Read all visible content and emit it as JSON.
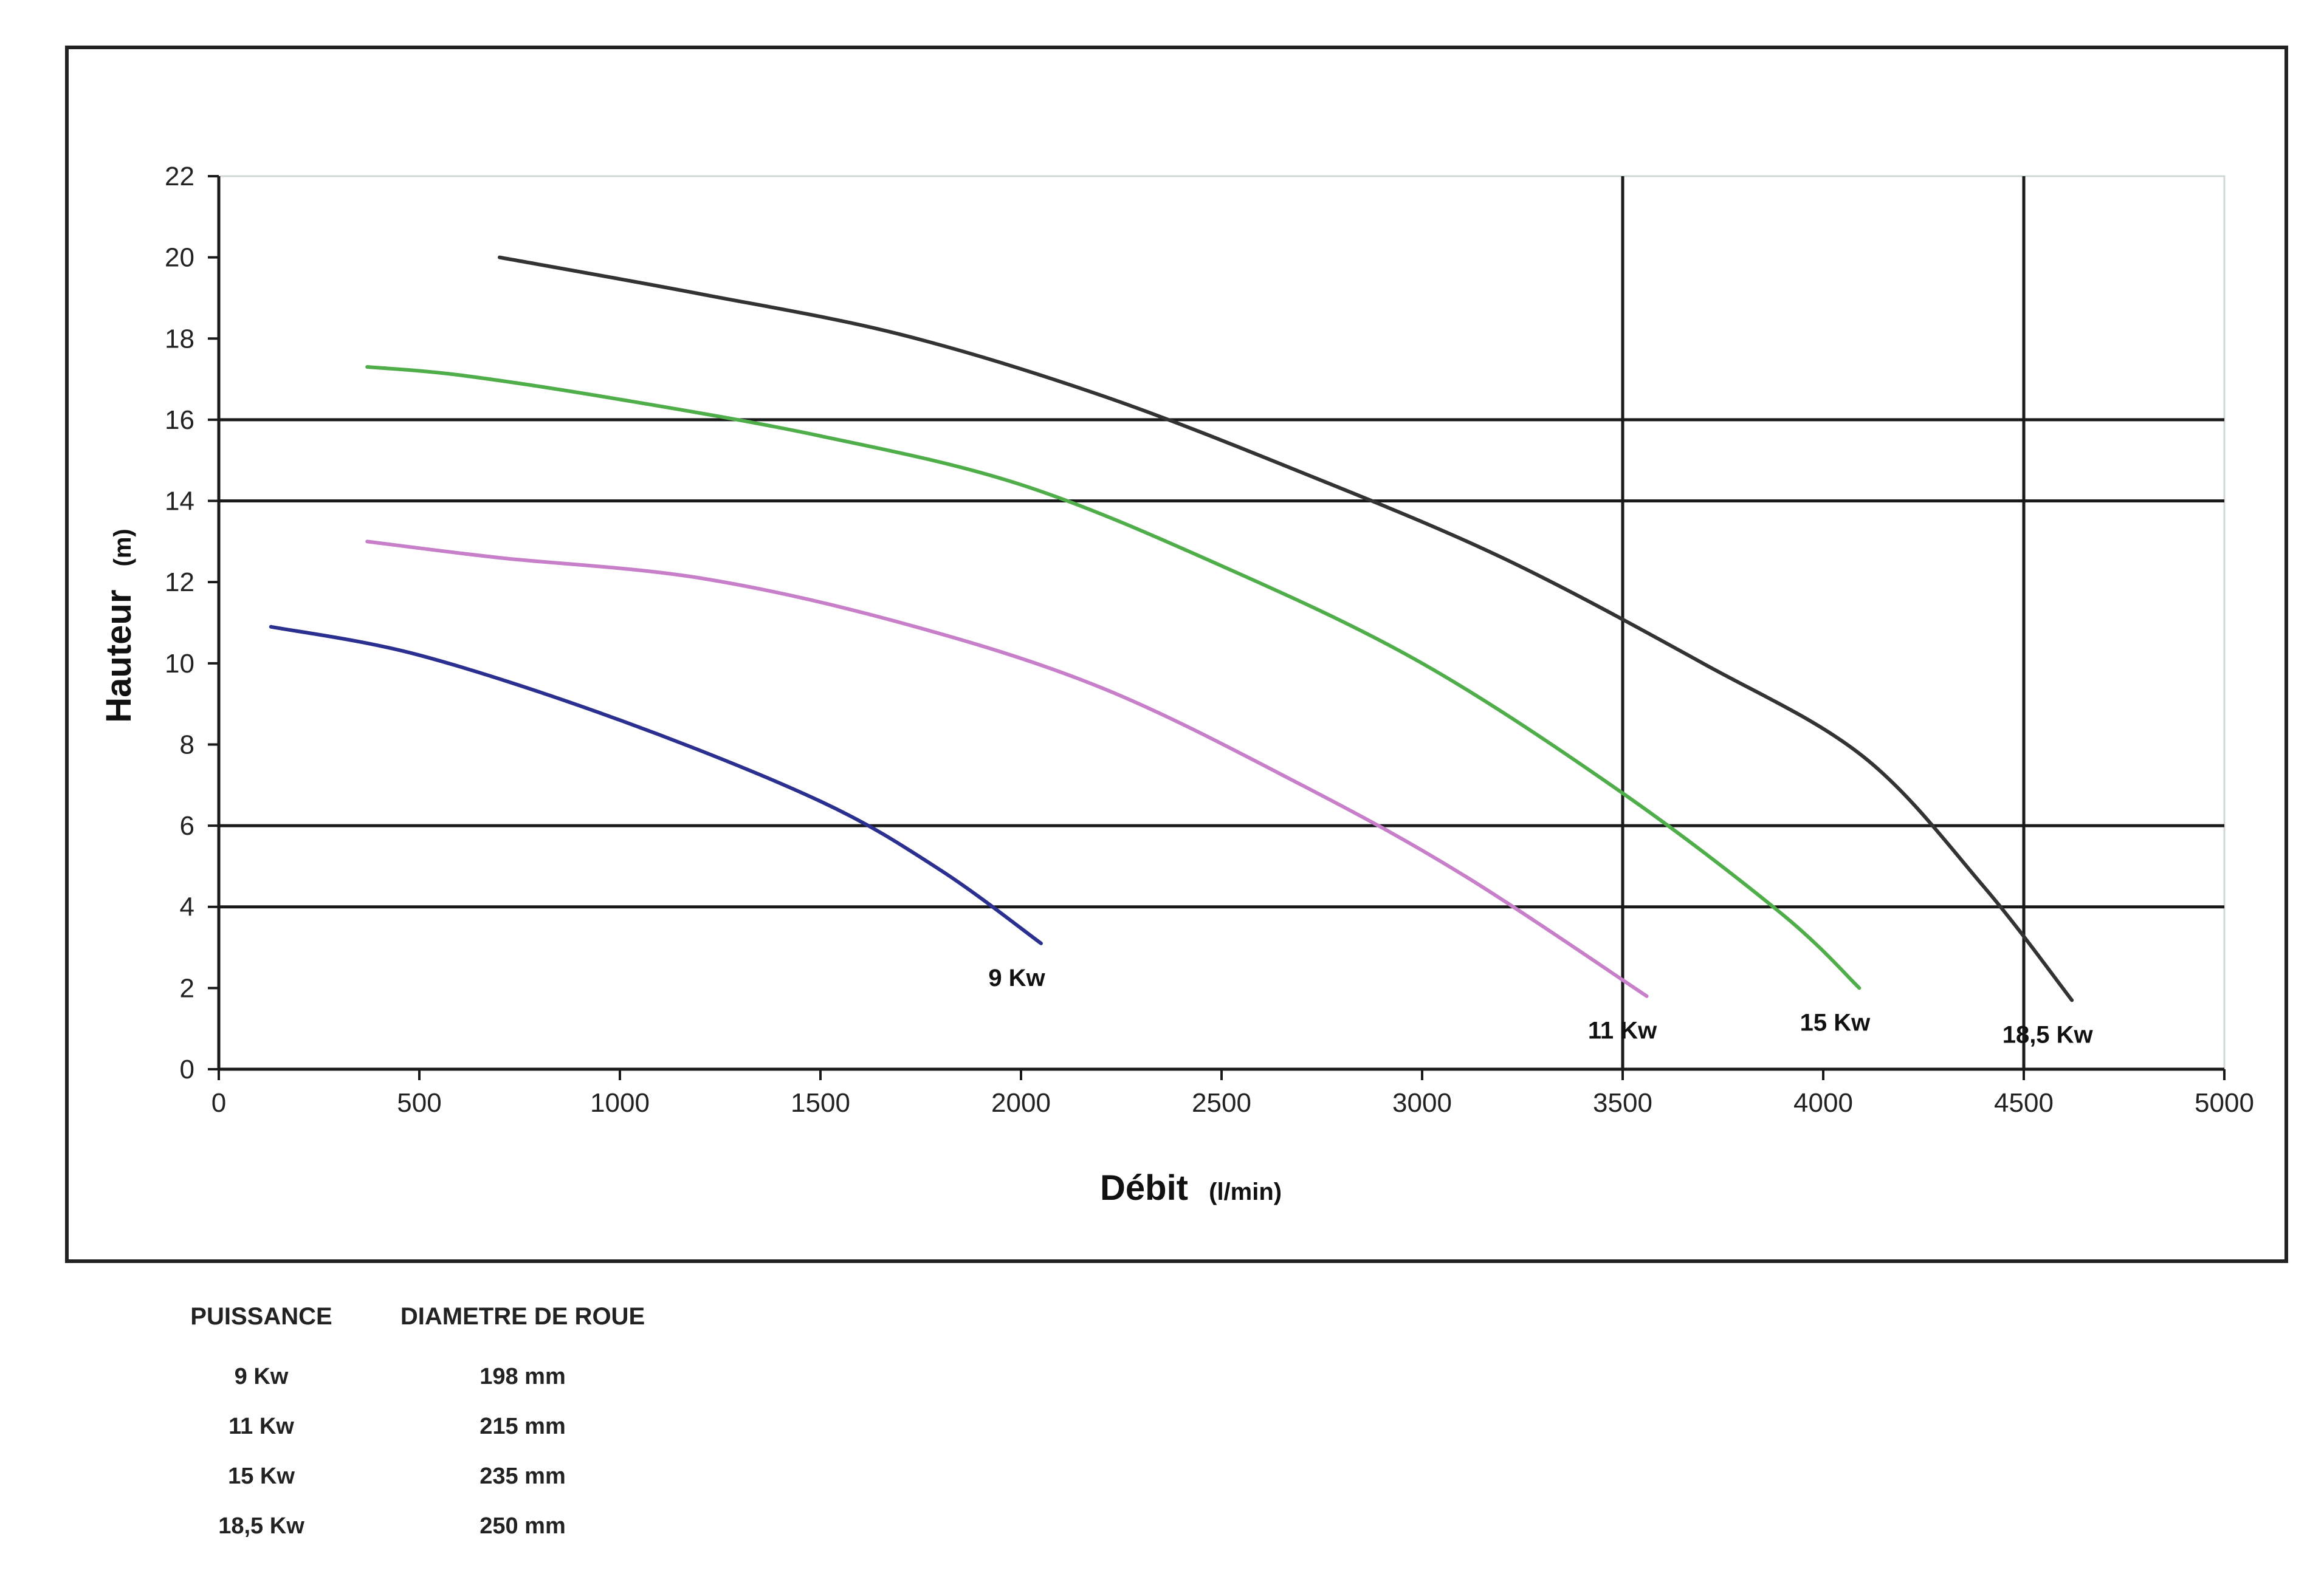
{
  "chart_data": {
    "type": "line",
    "xlabel": "Débit",
    "xlabel_unit": "(l/min)",
    "ylabel": "Hauteur",
    "ylabel_unit": "(m)",
    "xlim": [
      0,
      5000
    ],
    "ylim": [
      0,
      22
    ],
    "x_ticks": [
      "0",
      "500",
      "1000",
      "1500",
      "2000",
      "2500",
      "3000",
      "3500",
      "4000",
      "4500",
      "5000"
    ],
    "y_ticks": [
      "0",
      "2",
      "4",
      "6",
      "8",
      "10",
      "12",
      "14",
      "16",
      "18",
      "20",
      "22"
    ],
    "reference_lines": {
      "horizontal": [
        4,
        6,
        14,
        16
      ],
      "vertical": [
        3500,
        4500
      ]
    },
    "series": [
      {
        "name": "9 Kw",
        "color": "#2b2f8f",
        "x": [
          130,
          500,
          1000,
          1500,
          1800,
          2050
        ],
        "y": [
          10.9,
          10.2,
          8.6,
          6.6,
          4.9,
          3.1
        ]
      },
      {
        "name": "11 Kw",
        "color": "#c77fc9",
        "x": [
          370,
          700,
          1200,
          1700,
          2200,
          2700,
          3100,
          3560
        ],
        "y": [
          13.0,
          12.6,
          12.1,
          11.0,
          9.4,
          7.0,
          4.8,
          1.8
        ]
      },
      {
        "name": "15 Kw",
        "color": "#4fae4a",
        "x": [
          370,
          600,
          1000,
          1500,
          2000,
          2500,
          3000,
          3500,
          3900,
          4090
        ],
        "y": [
          17.3,
          17.1,
          16.5,
          15.6,
          14.4,
          12.4,
          10.0,
          6.8,
          3.8,
          2.0
        ]
      },
      {
        "name": "18,5 Kw",
        "color": "#333333",
        "x": [
          700,
          1200,
          1700,
          2200,
          2700,
          3200,
          3700,
          4100,
          4400,
          4620
        ],
        "y": [
          20.0,
          19.1,
          18.1,
          16.6,
          14.7,
          12.6,
          10.0,
          7.7,
          4.5,
          1.7
        ]
      }
    ]
  },
  "legend_table": {
    "headers": [
      "PUISSANCE",
      "DIAMETRE DE ROUE"
    ],
    "rows": [
      [
        "9 Kw",
        "198 mm"
      ],
      [
        "11 Kw",
        "215 mm"
      ],
      [
        "15 Kw",
        "235 mm"
      ],
      [
        "18,5 Kw",
        "250 mm"
      ]
    ]
  }
}
